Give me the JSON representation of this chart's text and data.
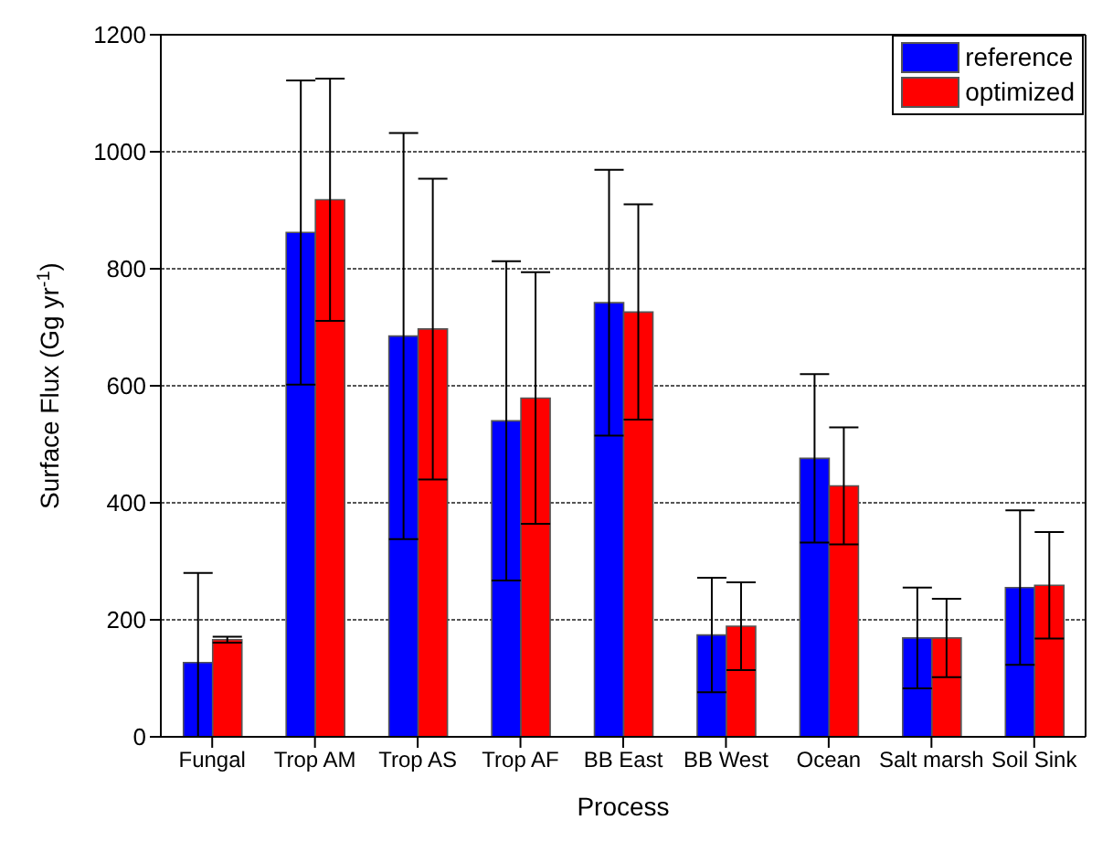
{
  "chart_data": {
    "type": "bar",
    "xlabel": "Process",
    "ylabel": "Surface Flux (Gg yr$^{-1}$)",
    "categories": [
      "Fungal",
      "Trop AM",
      "Trop AS",
      "Trop AF",
      "BB East",
      "BB West",
      "Ocean",
      "Salt marsh",
      "Soil Sink"
    ],
    "series": [
      {
        "name": "reference",
        "color": "#0000ff",
        "values": [
          127,
          862,
          685,
          540,
          742,
          174,
          476,
          169,
          255
        ],
        "errors": [
          [
            0,
            280
          ],
          260,
          347,
          273,
          227,
          98,
          144,
          86,
          132
        ]
      },
      {
        "name": "optimized",
        "color": "#ff0000",
        "values": [
          166,
          918,
          697,
          579,
          726,
          189,
          429,
          169,
          259
        ],
        "errors": [
          5,
          207,
          257,
          215,
          184,
          75,
          100,
          67,
          91
        ]
      }
    ],
    "ylim": [
      0,
      1200
    ],
    "yticks": [
      0,
      200,
      400,
      600,
      800,
      1000,
      1200
    ],
    "grid": "y",
    "legend": "top right"
  }
}
